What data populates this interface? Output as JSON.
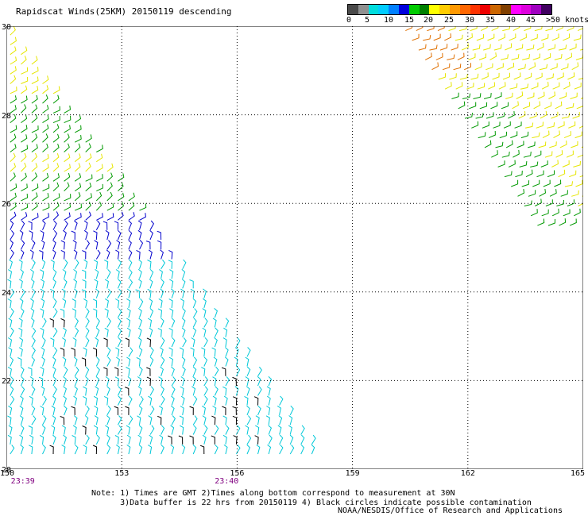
{
  "title": "Rapidscat Winds(25KM) 20150119 descending",
  "colorbar": {
    "colors": [
      "#4a4a4a",
      "#909090",
      "#00dddd",
      "#00ccff",
      "#0080ff",
      "#0000dd",
      "#00cc00",
      "#008000",
      "#ffff00",
      "#ffcc00",
      "#ff9900",
      "#ff6600",
      "#ff3300",
      "#ee0000",
      "#cc6600",
      "#804000",
      "#ff00ff",
      "#dd00dd",
      "#a000c0",
      "#400060"
    ],
    "labels": [
      "0",
      "5",
      "10",
      "15",
      "20",
      "25",
      "30",
      "35",
      "40",
      "45",
      ">50 knots"
    ]
  },
  "map": {
    "lat_labels": [
      "30",
      "28",
      "26",
      "24",
      "22",
      "20"
    ],
    "lon_labels": [
      "150",
      "153",
      "156",
      "159",
      "162",
      "165"
    ],
    "lat_range": [
      20,
      30
    ],
    "lon_range": [
      150,
      165
    ],
    "grid": "dotted",
    "time_labels": [
      "23:39",
      "23:40"
    ],
    "time_label_lons": [
      150.2,
      155.5
    ]
  },
  "note": {
    "line1": "Note: 1) Times are GMT 2)Times along bottom correspond to measurement at 30N",
    "line2": "      3)Data buffer is 22 hrs from 20150119 4) Black circles indicate possible contamination"
  },
  "credit": "NOAA/NESDIS/Office of Research and Applications"
}
